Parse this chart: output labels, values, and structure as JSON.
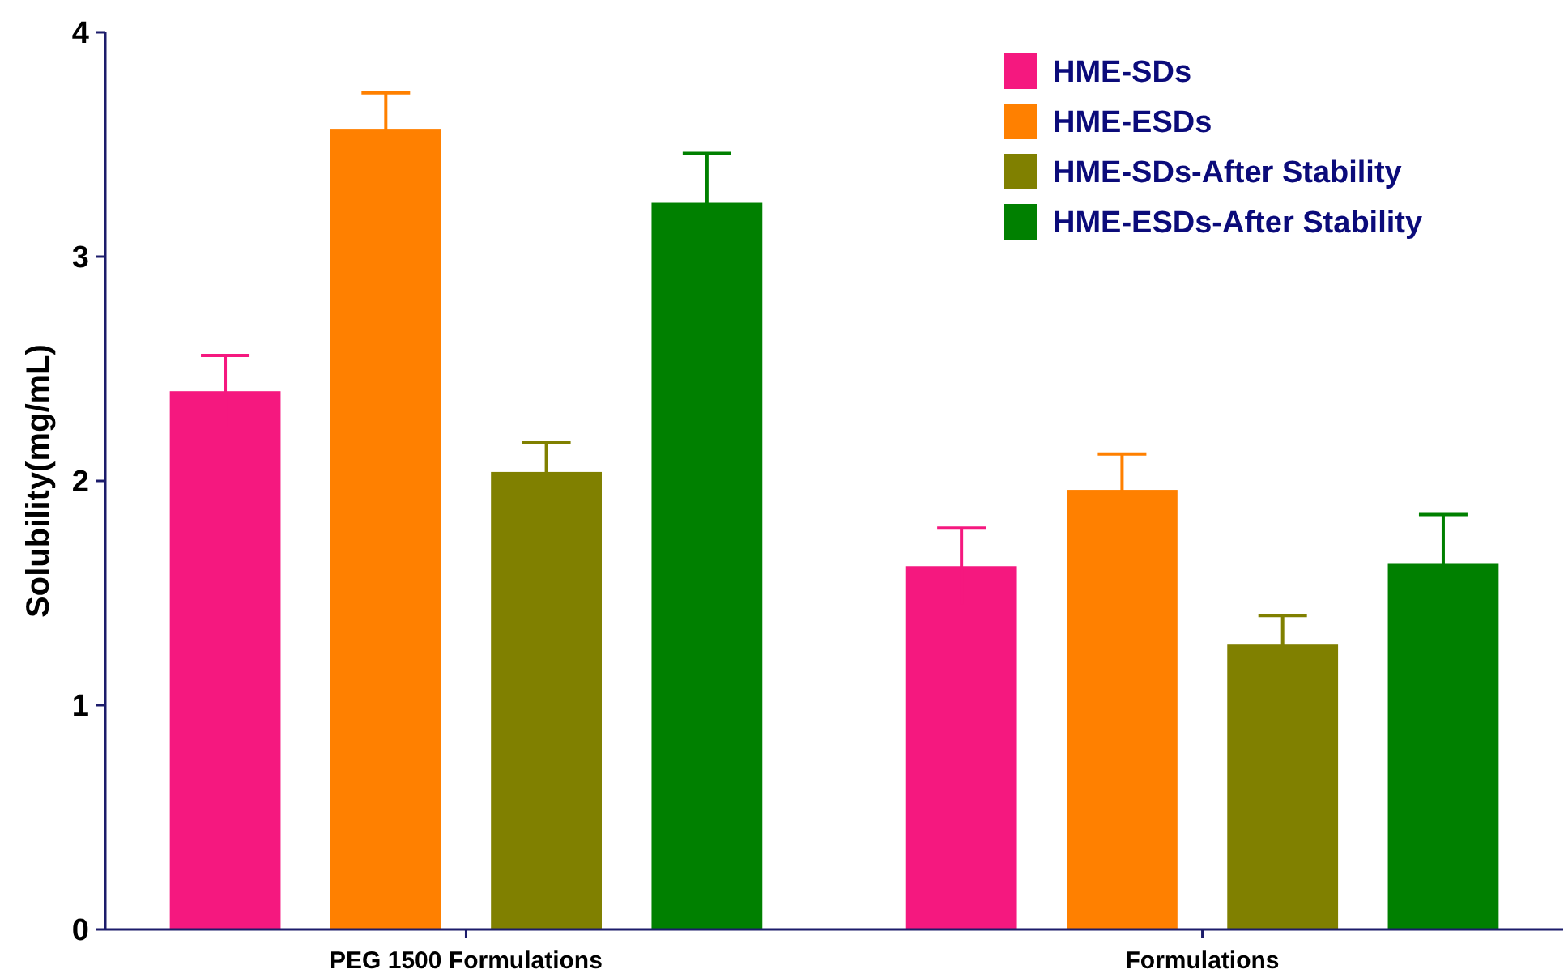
{
  "chart_data": {
    "type": "bar",
    "ylabel": "Solubility(mg/mL)",
    "categories": [
      "PEG 1500 Formulations",
      "Formulations"
    ],
    "ylim": [
      0,
      4
    ],
    "yticks": [
      0,
      1,
      2,
      3,
      4
    ],
    "grid": false,
    "legend": "top right",
    "series": [
      {
        "name": "HME-SDs",
        "color": "#f5187f",
        "values": [
          2.4,
          1.62
        ],
        "errors": [
          0.16,
          0.17
        ]
      },
      {
        "name": "HME-ESDs",
        "color": "#ff8000",
        "values": [
          3.57,
          1.96
        ],
        "errors": [
          0.16,
          0.16
        ]
      },
      {
        "name": "HME-SDs-After Stability",
        "color": "#808000",
        "values": [
          2.04,
          1.27
        ],
        "errors": [
          0.13,
          0.13
        ]
      },
      {
        "name": "HME-ESDs-After Stability",
        "color": "#008000",
        "values": [
          3.24,
          1.63
        ],
        "errors": [
          0.22,
          0.22
        ]
      }
    ]
  }
}
